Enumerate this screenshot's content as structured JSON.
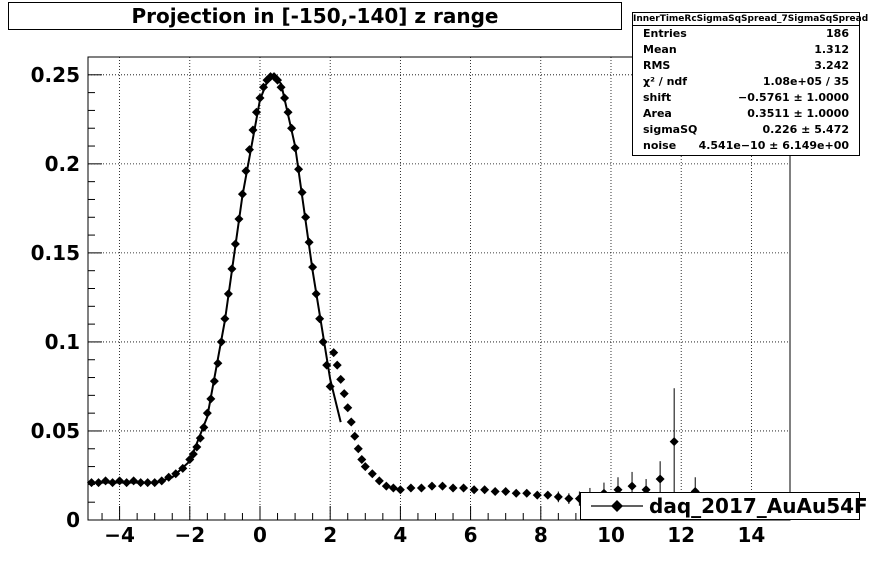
{
  "title": "Projection in [-150,-140] z range",
  "stats": {
    "name": "InnerTimeRcSigmaSqSpread_7SigmaSqSpread",
    "rows": [
      {
        "label": "Entries",
        "value": "186"
      },
      {
        "label": "Mean",
        "value": "1.312"
      },
      {
        "label": "RMS",
        "value": "3.242"
      },
      {
        "label": "χ² / ndf",
        "value": "1.08e+05 / 35"
      },
      {
        "label": "shift",
        "value": "−0.5761 ± 1.0000"
      },
      {
        "label": "Area",
        "value": "0.3511 ± 1.0000"
      },
      {
        "label": "sigmaSQ",
        "value": "0.226 ± 5.472"
      },
      {
        "label": "noise",
        "value": "4.541e−10 ± 6.149e+00"
      }
    ]
  },
  "legend": {
    "entry": "daq_2017_AuAu54F"
  },
  "chart_data": {
    "type": "scatter",
    "title": "Projection in [-150,-140] z range",
    "xlim": [
      -4.9,
      15.1
    ],
    "ylim": [
      0,
      0.26
    ],
    "grid": true,
    "legend_position": "bottom-right",
    "y_ticks": [
      "0",
      "0.05",
      "0.1",
      "0.15",
      "0.2",
      "0.25"
    ],
    "y_tick_values": [
      0,
      0.05,
      0.1,
      0.15,
      0.2,
      0.25
    ],
    "x_ticks": [
      "−4",
      "−2",
      "0",
      "2",
      "4",
      "6",
      "8",
      "10",
      "12",
      "14"
    ],
    "x_tick_values": [
      -4,
      -2,
      0,
      2,
      4,
      6,
      8,
      10,
      12,
      14
    ],
    "series": [
      {
        "name": "daq_2017_AuAu54F",
        "x": [
          -4.8,
          -4.6,
          -4.4,
          -4.2,
          -4.0,
          -3.8,
          -3.6,
          -3.4,
          -3.2,
          -3.0,
          -2.8,
          -2.6,
          -2.4,
          -2.2,
          -2.0,
          -1.9,
          -1.8,
          -1.7,
          -1.6,
          -1.5,
          -1.4,
          -1.3,
          -1.2,
          -1.1,
          -1.0,
          -0.9,
          -0.8,
          -0.7,
          -0.6,
          -0.5,
          -0.4,
          -0.3,
          -0.2,
          -0.1,
          0.0,
          0.1,
          0.2,
          0.3,
          0.4,
          0.5,
          0.6,
          0.7,
          0.8,
          0.9,
          1.0,
          1.1,
          1.2,
          1.3,
          1.4,
          1.5,
          1.6,
          1.7,
          1.8,
          1.9,
          2.0,
          2.1,
          2.2,
          2.3,
          2.4,
          2.5,
          2.6,
          2.7,
          2.8,
          2.9,
          3.0,
          3.2,
          3.4,
          3.6,
          3.8,
          4.0,
          4.3,
          4.6,
          4.9,
          5.2,
          5.5,
          5.8,
          6.1,
          6.4,
          6.7,
          7.0,
          7.3,
          7.6,
          7.9,
          8.2,
          8.5,
          8.8,
          9.1,
          9.4,
          9.8,
          10.2,
          10.6,
          11.0,
          11.4,
          11.8,
          12.4
        ],
        "y": [
          0.021,
          0.021,
          0.022,
          0.021,
          0.022,
          0.021,
          0.022,
          0.021,
          0.021,
          0.021,
          0.022,
          0.024,
          0.026,
          0.029,
          0.034,
          0.037,
          0.041,
          0.046,
          0.052,
          0.06,
          0.068,
          0.078,
          0.088,
          0.1,
          0.113,
          0.127,
          0.141,
          0.155,
          0.169,
          0.183,
          0.196,
          0.208,
          0.219,
          0.229,
          0.237,
          0.243,
          0.247,
          0.249,
          0.249,
          0.247,
          0.243,
          0.237,
          0.229,
          0.22,
          0.209,
          0.197,
          0.184,
          0.17,
          0.156,
          0.142,
          0.127,
          0.113,
          0.1,
          0.087,
          0.075,
          0.094,
          0.087,
          0.079,
          0.071,
          0.063,
          0.055,
          0.047,
          0.04,
          0.034,
          0.03,
          0.026,
          0.022,
          0.019,
          0.018,
          0.017,
          0.018,
          0.018,
          0.019,
          0.019,
          0.018,
          0.018,
          0.017,
          0.017,
          0.016,
          0.016,
          0.015,
          0.015,
          0.014,
          0.014,
          0.013,
          0.012,
          0.012,
          0.013,
          0.015,
          0.017,
          0.019,
          0.017,
          0.023,
          0.044,
          0.016
        ],
        "errors": [
          0.001,
          0.001,
          0.001,
          0.001,
          0.001,
          0.001,
          0.001,
          0.001,
          0.001,
          0.001,
          0.001,
          0.001,
          0.001,
          0.001,
          0.001,
          0.001,
          0.001,
          0.001,
          0.001,
          0.001,
          0.001,
          0.001,
          0.001,
          0.001,
          0.001,
          0.001,
          0.001,
          0.001,
          0.001,
          0.001,
          0.001,
          0.001,
          0.001,
          0.001,
          0.001,
          0.001,
          0.001,
          0.001,
          0.001,
          0.001,
          0.001,
          0.001,
          0.001,
          0.001,
          0.001,
          0.001,
          0.001,
          0.001,
          0.001,
          0.001,
          0.001,
          0.001,
          0.001,
          0.001,
          0.001,
          0.001,
          0.001,
          0.001,
          0.001,
          0.001,
          0.001,
          0.001,
          0.001,
          0.001,
          0.001,
          0.001,
          0.001,
          0.001,
          0.001,
          0.001,
          0.001,
          0.001,
          0.001,
          0.001,
          0.001,
          0.001,
          0.001,
          0.001,
          0.001,
          0.001,
          0.001,
          0.001,
          0.002,
          0.002,
          0.003,
          0.003,
          0.004,
          0.005,
          0.006,
          0.007,
          0.008,
          0.006,
          0.01,
          0.03,
          0.008
        ]
      },
      {
        "name": "fit",
        "x": [
          -4.8,
          -4.0,
          -3.0,
          -2.5,
          -2.0,
          -1.5,
          -1.0,
          -0.5,
          0.0,
          0.2,
          0.4,
          0.6,
          1.0,
          1.5,
          2.0,
          2.3
        ],
        "y": [
          0.021,
          0.021,
          0.021,
          0.024,
          0.033,
          0.058,
          0.112,
          0.182,
          0.236,
          0.246,
          0.249,
          0.245,
          0.21,
          0.14,
          0.079,
          0.055
        ]
      }
    ]
  }
}
